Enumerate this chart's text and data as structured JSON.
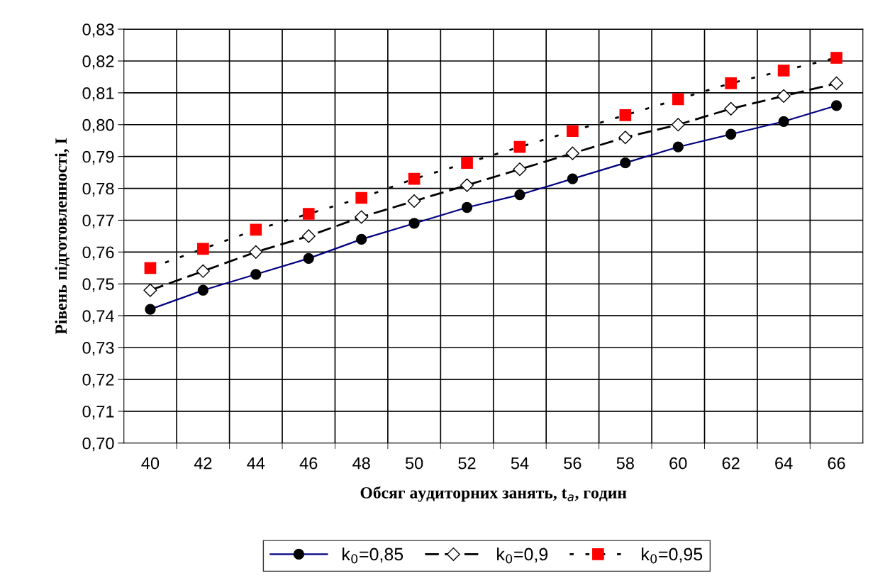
{
  "chart_data": {
    "type": "line",
    "xlabel": "Обсяг аудиторних занять, t$_{a}$, годин",
    "ylabel": "Рівень підготовленності, I",
    "categories": [
      "40",
      "42",
      "44",
      "46",
      "48",
      "50",
      "52",
      "54",
      "56",
      "58",
      "60",
      "62",
      "64",
      "66"
    ],
    "series": [
      {
        "name": "k$_{0}$=0,85",
        "color": "#000080",
        "colors": [
          "#000000",
          "#000000",
          "#000000",
          "#000000",
          "#000000",
          "#000000",
          "#000000",
          "#000000",
          "#000000",
          "#000000",
          "#000000",
          "#000000",
          "#000000",
          "#000000"
        ],
        "marker": "circle",
        "line_style": "solid",
        "values": [
          0.742,
          0.748,
          0.753,
          0.758,
          0.764,
          0.769,
          0.774,
          0.778,
          0.783,
          0.788,
          0.793,
          0.797,
          0.801,
          0.806
        ]
      },
      {
        "name": "k$_{0}$=0,9",
        "color": "#000000",
        "colors": [
          "#ffffff",
          "#ffffff",
          "#ffffff",
          "#ffffff",
          "#ffffff",
          "#ffffff",
          "#ffffff",
          "#ffffff",
          "#ffffff",
          "#ffffff",
          "#ffffff",
          "#ffffff",
          "#ffffff",
          "#ffffff"
        ],
        "marker": "diamond",
        "line_style": "dashed",
        "values": [
          0.748,
          0.754,
          0.76,
          0.765,
          0.771,
          0.776,
          0.781,
          0.786,
          0.791,
          0.796,
          0.8,
          0.805,
          0.809,
          0.813
        ]
      },
      {
        "name": "k$_{0}$=0,95",
        "color": "#000000",
        "colors": [
          "#ff0000",
          "#ff0000",
          "#ff0000",
          "#ff0000",
          "#ff0000",
          "#ff0000",
          "#ff0000",
          "#ff0000",
          "#ff0000",
          "#ff0000",
          "#ff0000",
          "#ff0000",
          "#ff0000",
          "#ff0000"
        ],
        "marker": "square",
        "line_style": "dotted",
        "values": [
          0.755,
          0.761,
          0.767,
          0.772,
          0.777,
          0.783,
          0.788,
          0.793,
          0.798,
          0.803,
          0.808,
          0.813,
          0.817,
          0.821
        ]
      }
    ],
    "ylim": [
      0.7,
      0.83
    ],
    "yticks": [
      {
        "value": 0.7,
        "label": "0,70"
      },
      {
        "value": 0.71,
        "label": "0,71"
      },
      {
        "value": 0.72,
        "label": "0,72"
      },
      {
        "value": 0.73,
        "label": "0,73"
      },
      {
        "value": 0.74,
        "label": "0,74"
      },
      {
        "value": 0.75,
        "label": "0,75"
      },
      {
        "value": 0.76,
        "label": "0,76"
      },
      {
        "value": 0.77,
        "label": "0,77"
      },
      {
        "value": 0.78,
        "label": "0,78"
      },
      {
        "value": 0.79,
        "label": "0,79"
      },
      {
        "value": 0.8,
        "label": "0,80"
      },
      {
        "value": 0.81,
        "label": "0,81"
      },
      {
        "value": 0.82,
        "label": "0,82"
      },
      {
        "value": 0.83,
        "label": "0,83"
      }
    ],
    "grid": true,
    "legend": "bottom"
  }
}
